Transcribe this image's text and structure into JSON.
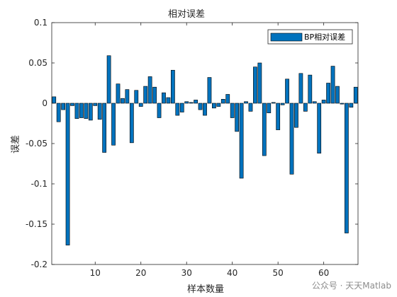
{
  "chart_data": {
    "type": "bar",
    "title": "相对误差",
    "xlabel": "样本数量",
    "ylabel": "误差",
    "legend": "BP相对误差",
    "legend_position": "top-right",
    "xlim": [
      0.5,
      67.5
    ],
    "ylim": [
      -0.2,
      0.1
    ],
    "xticks": [
      10,
      20,
      30,
      40,
      50,
      60
    ],
    "yticks": [
      -0.2,
      -0.15,
      -0.1,
      -0.05,
      0,
      0.05,
      0.1
    ],
    "ytick_labels": [
      "-0.2",
      "-0.15",
      "-0.1",
      "-0.05",
      "0",
      "0.05",
      "0.1"
    ],
    "grid": false,
    "bar_color": "#0072bd",
    "x": [
      1,
      2,
      3,
      4,
      5,
      6,
      7,
      8,
      9,
      10,
      11,
      12,
      13,
      14,
      15,
      16,
      17,
      18,
      19,
      20,
      21,
      22,
      23,
      24,
      25,
      26,
      27,
      28,
      29,
      30,
      31,
      32,
      33,
      34,
      35,
      36,
      37,
      38,
      39,
      40,
      41,
      42,
      43,
      44,
      45,
      46,
      47,
      48,
      49,
      50,
      51,
      52,
      53,
      54,
      55,
      56,
      57,
      58,
      59,
      60,
      61,
      62,
      63,
      64,
      65,
      66,
      67
    ],
    "values": [
      0.008,
      -0.023,
      -0.008,
      -0.176,
      -0.003,
      -0.019,
      -0.018,
      -0.019,
      -0.021,
      -0.003,
      -0.02,
      -0.061,
      0.059,
      -0.052,
      0.024,
      0.006,
      0.017,
      -0.049,
      0.016,
      -0.004,
      0.021,
      0.033,
      0.02,
      -0.018,
      0.013,
      0.007,
      0.041,
      -0.015,
      -0.011,
      0.002,
      0.001,
      0.004,
      -0.008,
      -0.015,
      0.032,
      -0.006,
      -0.004,
      0.005,
      0.011,
      -0.018,
      -0.035,
      -0.093,
      0.002,
      -0.01,
      0.045,
      0.05,
      -0.065,
      -0.012,
      0.001,
      -0.033,
      -0.002,
      0.03,
      -0.088,
      -0.03,
      0.037,
      -0.01,
      0.035,
      0.002,
      -0.062,
      0.004,
      0.025,
      0.046,
      0.021,
      -0.001,
      -0.161,
      -0.005,
      0.02
    ]
  },
  "watermark": "公众号 · 天天Matlab"
}
